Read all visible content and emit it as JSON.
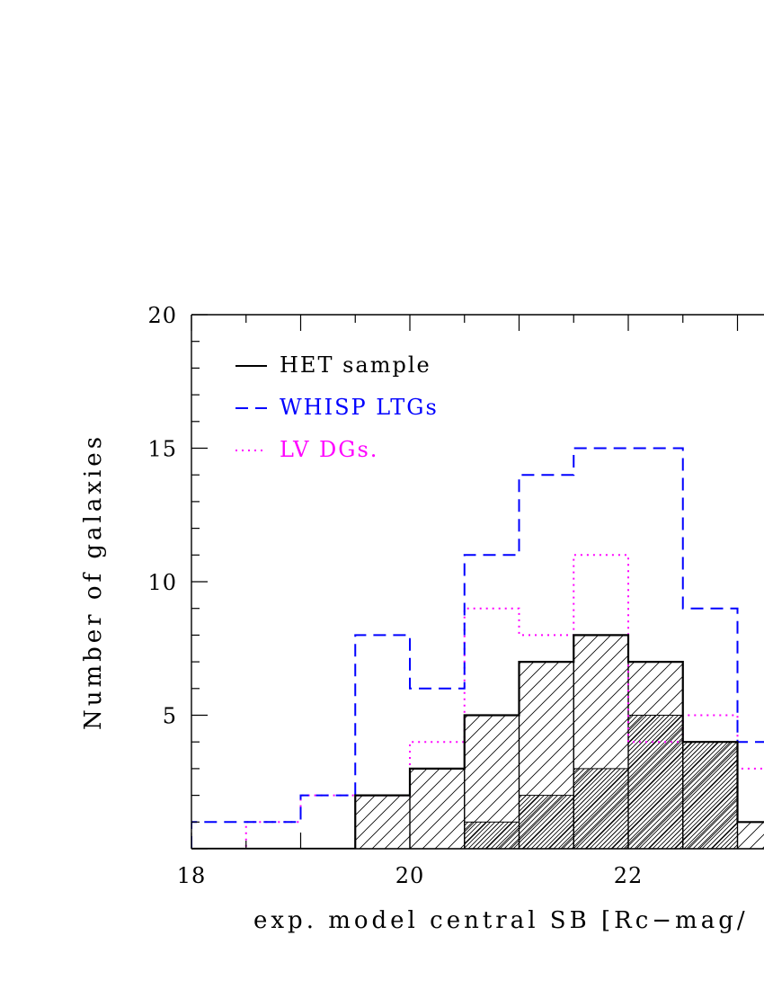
{
  "chart_data": {
    "type": "histogram",
    "xlabel": "exp. model central SB [Rc−mag/",
    "ylabel": "Number of galaxies",
    "xlim": [
      18,
      23.2
    ],
    "ylim": [
      0,
      20
    ],
    "xticks": [
      {
        "value": 18,
        "label": "18"
      },
      {
        "value": 20,
        "label": "20"
      },
      {
        "value": 22,
        "label": "22"
      }
    ],
    "yticks": [
      {
        "value": 5,
        "label": "5"
      },
      {
        "value": 10,
        "label": "10"
      },
      {
        "value": 15,
        "label": "15"
      },
      {
        "value": 20,
        "label": "20"
      }
    ],
    "x_minor_step": 0.5,
    "y_minor_step": 1,
    "bin_edges": [
      18.0,
      18.5,
      19.0,
      19.5,
      20.0,
      20.5,
      21.0,
      21.5,
      22.0,
      22.5,
      23.0,
      23.5
    ],
    "series": [
      {
        "name": "HET sample",
        "style": "solid-hatched",
        "color": "#000000",
        "values": [
          0,
          0,
          0,
          2,
          3,
          5,
          7,
          8,
          7,
          4,
          1
        ]
      },
      {
        "name": "",
        "style": "dense-hatched subset",
        "color": "#000000",
        "values": [
          0,
          0,
          0,
          0,
          0,
          1,
          2,
          3,
          5,
          4,
          0
        ]
      },
      {
        "name": "WHISP LTGs",
        "style": "dashed",
        "color": "#0000ff",
        "values": [
          1,
          1,
          2,
          8,
          6,
          11,
          14,
          15,
          15,
          9,
          4
        ]
      },
      {
        "name": "LV DGs.",
        "style": "dotted",
        "color": "#ff00ff",
        "values": [
          0,
          1,
          2,
          2,
          4,
          9,
          8,
          11,
          4,
          5,
          3
        ]
      }
    ],
    "legend": {
      "placement": "top-left",
      "entries": [
        {
          "label": "HET sample",
          "color": "#000000",
          "dash": "solid",
          "text_color": "#000000"
        },
        {
          "label": "WHISP LTGs",
          "color": "#0000ff",
          "dash": "dashed",
          "text_color": "#0000ff"
        },
        {
          "label": "LV DGs.",
          "color": "#ff00ff",
          "dash": "dotted",
          "text_color": "#ff00ff"
        }
      ]
    }
  }
}
